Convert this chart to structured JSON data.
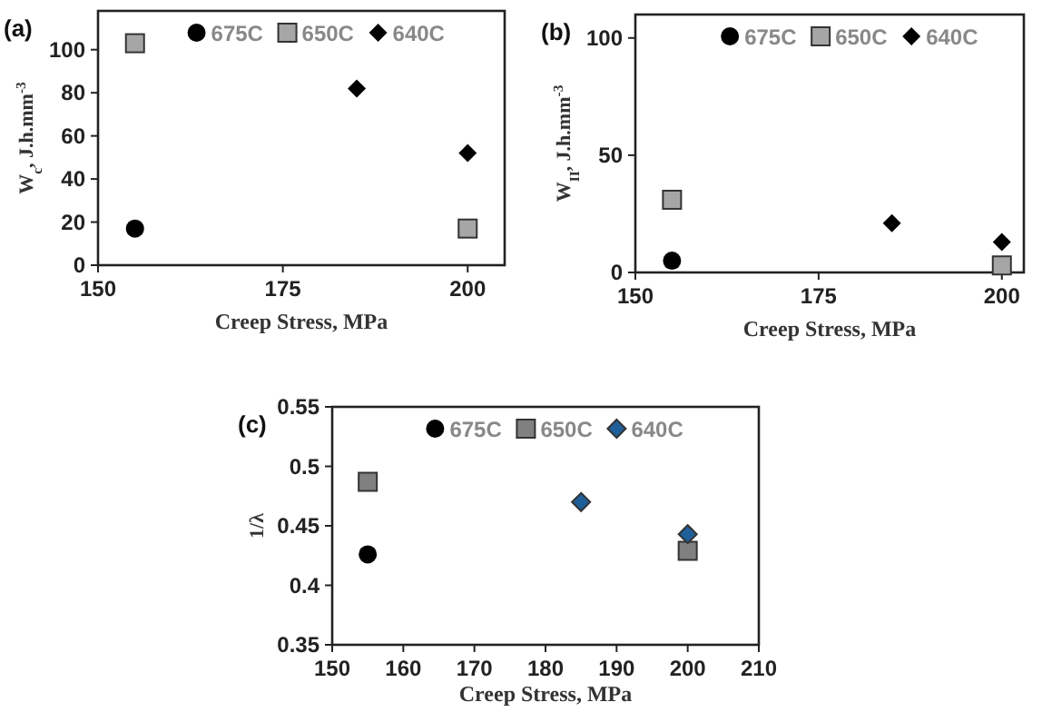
{
  "chart_data": [
    {
      "type": "scatter",
      "title": "(a)",
      "xlabel": "Creep Stress, MPa",
      "ylabel": "W$_{c}$, J.h.mm$^{-3}$",
      "xlim": [
        150,
        205
      ],
      "xticks": [
        150,
        175,
        200
      ],
      "ylim": [
        0,
        118
      ],
      "yticks": [
        0,
        20,
        40,
        60,
        80,
        100
      ],
      "grid": false,
      "legend": "top",
      "series": [
        {
          "name": "675C",
          "color": "#000000",
          "marker": "circle",
          "x": [
            155
          ],
          "values": [
            17
          ]
        },
        {
          "name": "650C",
          "color": "#a6a6a6",
          "marker": "square",
          "x": [
            155,
            200
          ],
          "values": [
            103,
            17
          ]
        },
        {
          "name": "640C",
          "color": "#000000",
          "marker": "diamond",
          "x": [
            185,
            200
          ],
          "values": [
            82,
            52
          ]
        }
      ]
    },
    {
      "type": "scatter",
      "title": "(b)",
      "xlabel": "Creep Stress, MPa",
      "ylabel": "W$_{II}$, J.h.mm$^{-3}$",
      "xlim": [
        150,
        203
      ],
      "xticks": [
        150,
        175,
        200
      ],
      "ylim": [
        0,
        110
      ],
      "yticks": [
        0,
        50,
        100
      ],
      "grid": false,
      "legend": "top",
      "series": [
        {
          "name": "675C",
          "color": "#000000",
          "marker": "circle",
          "x": [
            155
          ],
          "values": [
            5
          ]
        },
        {
          "name": "650C",
          "color": "#a6a6a6",
          "marker": "square",
          "x": [
            155,
            200
          ],
          "values": [
            31,
            3
          ]
        },
        {
          "name": "640C",
          "color": "#000000",
          "marker": "diamond",
          "x": [
            185,
            200
          ],
          "values": [
            21,
            13
          ]
        }
      ]
    },
    {
      "type": "scatter",
      "title": "(c)",
      "xlabel": "Creep Stress, MPa",
      "ylabel": "1/λ",
      "xlim": [
        150,
        210
      ],
      "xticks": [
        150,
        160,
        170,
        180,
        190,
        200,
        210
      ],
      "ylim": [
        0.35,
        0.55
      ],
      "yticks": [
        0.35,
        0.4,
        0.45,
        0.5,
        0.55
      ],
      "grid": false,
      "legend": "top",
      "series": [
        {
          "name": "675C",
          "color": "#000000",
          "marker": "circle",
          "x": [
            155
          ],
          "values": [
            0.426
          ]
        },
        {
          "name": "650C",
          "color": "#808080",
          "marker": "square",
          "x": [
            155,
            200
          ],
          "values": [
            0.487,
            0.429
          ]
        },
        {
          "name": "640C",
          "color": "#1f5f9a",
          "marker": "diamond",
          "x": [
            185,
            200
          ],
          "values": [
            0.47,
            0.443
          ]
        }
      ]
    }
  ]
}
